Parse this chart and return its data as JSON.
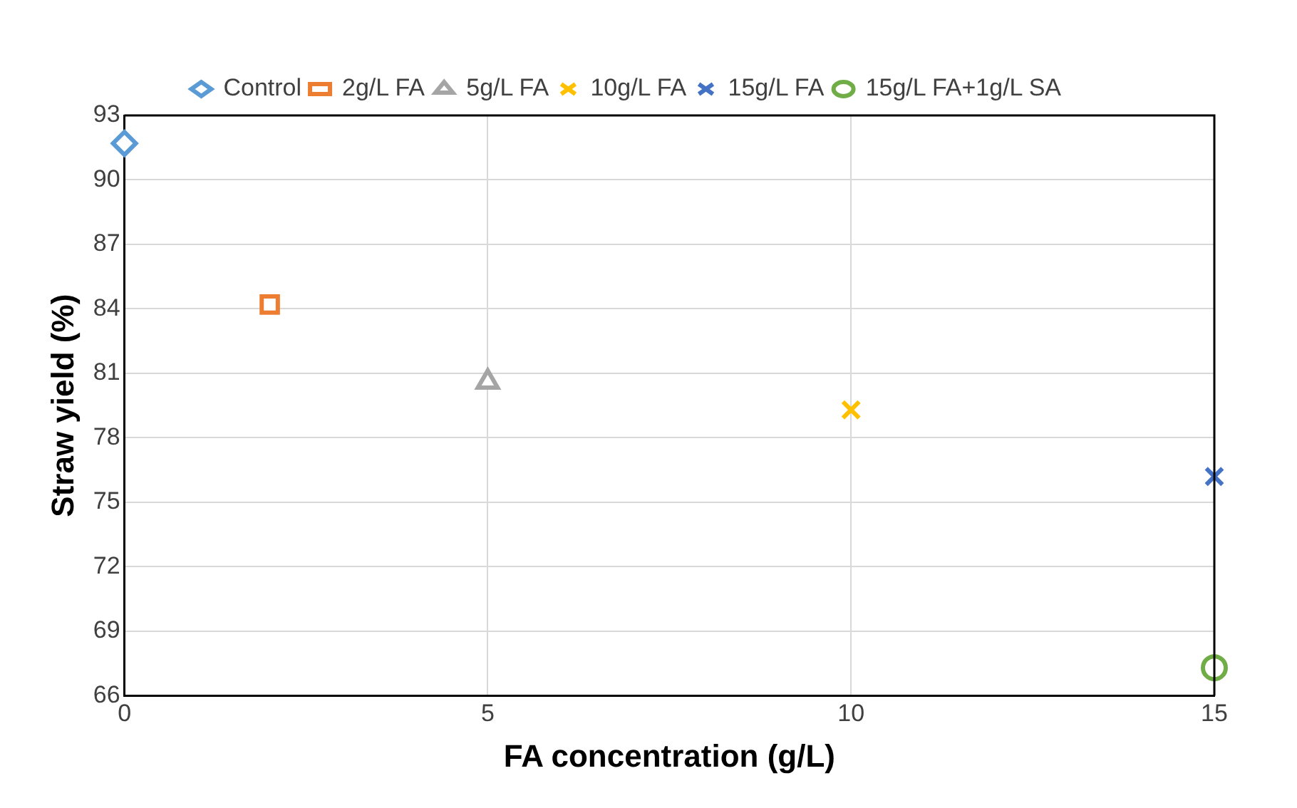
{
  "chart_data": {
    "type": "scatter",
    "xlabel": "FA concentration (g/L)",
    "ylabel": "Straw yield (%)",
    "xlim": [
      0,
      15
    ],
    "xticks": [
      0,
      5,
      10,
      15
    ],
    "ylim": [
      66,
      93
    ],
    "yticks": [
      66,
      69,
      72,
      75,
      78,
      81,
      84,
      87,
      90,
      93
    ],
    "grid": true,
    "legend": "top",
    "series": [
      {
        "name": "Control",
        "color": "#5b9bd5",
        "marker": "diamond",
        "x": [
          0
        ],
        "values": [
          91.7
        ]
      },
      {
        "name": "2g/L FA",
        "color": "#ed7d31",
        "marker": "square",
        "x": [
          2
        ],
        "values": [
          84.2
        ]
      },
      {
        "name": "5g/L FA",
        "color": "#a5a5a5",
        "marker": "triangle",
        "x": [
          5
        ],
        "values": [
          80.6
        ]
      },
      {
        "name": "10g/L FA",
        "color": "#ffc000",
        "marker": "cross",
        "x": [
          10
        ],
        "values": [
          79.3
        ]
      },
      {
        "name": "15g/L FA",
        "color": "#4472c4",
        "marker": "cross",
        "x": [
          15
        ],
        "values": [
          76.2
        ]
      },
      {
        "name": "15g/L FA+1g/L SA",
        "color": "#70ad47",
        "marker": "circle",
        "x": [
          15
        ],
        "values": [
          67.3
        ]
      }
    ]
  }
}
